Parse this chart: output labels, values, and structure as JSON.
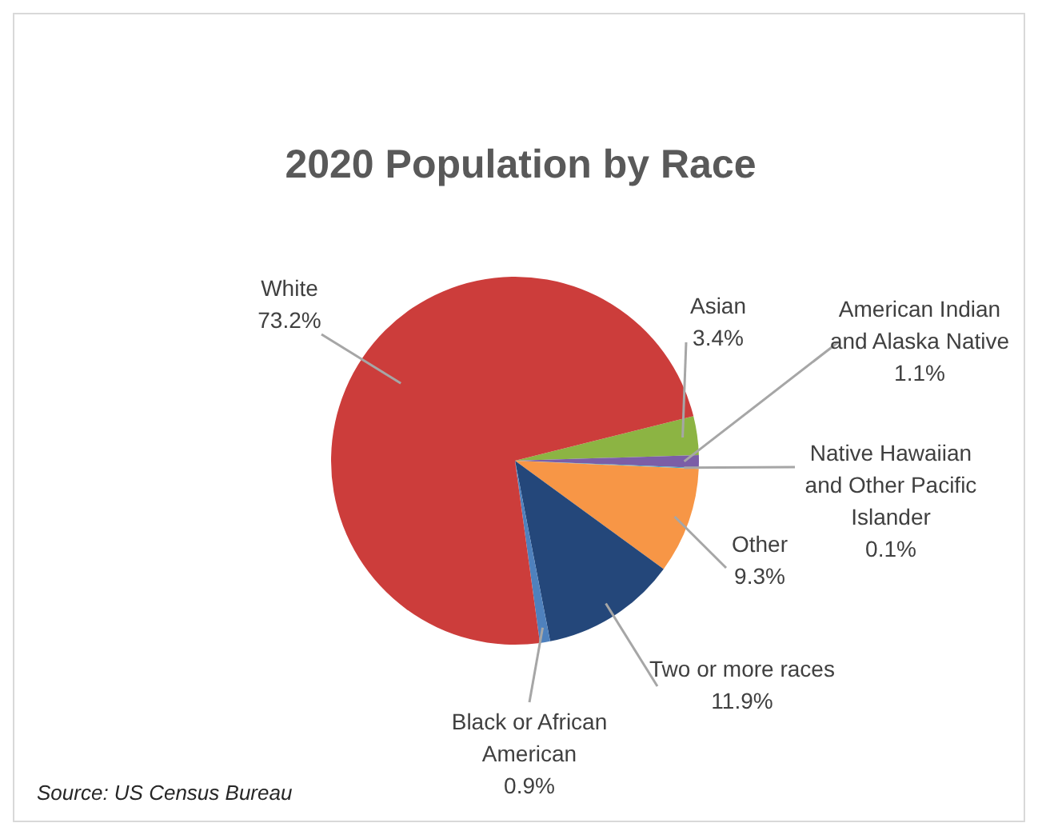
{
  "chart_data": {
    "type": "pie",
    "title": "2020 Population by Race",
    "categories": [
      "Asian",
      "American Indian and Alaska Native",
      "Native Hawaiian and Other Pacific Islander",
      "Other",
      "Two or more races",
      "Black or African American",
      "White"
    ],
    "values": [
      3.4,
      1.1,
      0.1,
      9.3,
      11.9,
      0.9,
      73.2
    ],
    "value_labels": [
      "3.4%",
      "1.1%",
      "0.1%",
      "9.3%",
      "11.9%",
      "0.9%",
      "73.2%"
    ],
    "colors": [
      "#8cb443",
      "#7b5ea7",
      "#4bacc6",
      "#f79646",
      "#24477a",
      "#4f81bd",
      "#cc3d3b"
    ],
    "data_labels": true,
    "annotations": [
      "Source: US Census Bureau"
    ]
  }
}
